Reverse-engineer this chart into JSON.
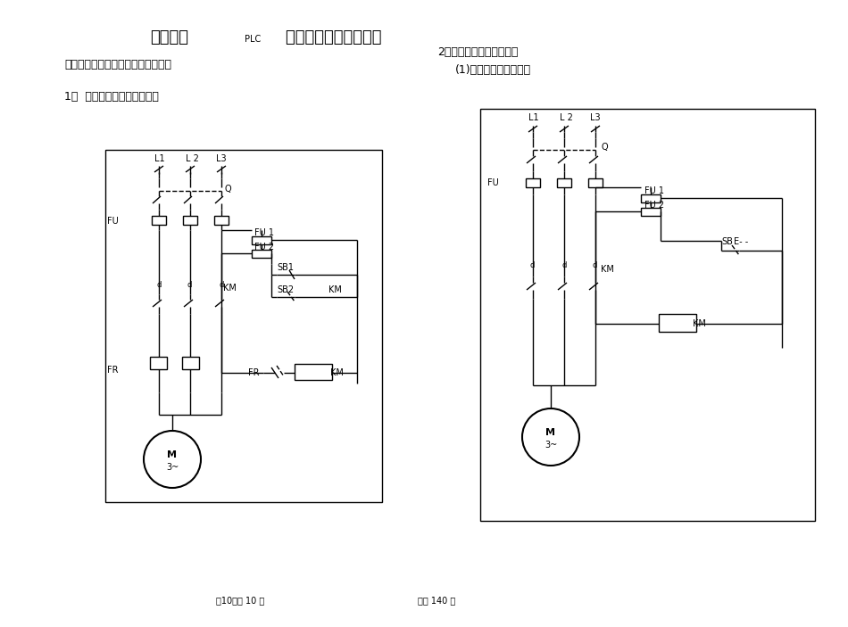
{
  "title_part1": "《电器及",
  "title_plc": "PLC",
  "title_part2": "    把握技术》电气原理图",
  "subtitle_left": "、三相异步电机的全压起动把握电路",
  "subtitle_right": "2、电动机的点动把握电路",
  "subtitle_right2": "(1)仅能点动把握的电路",
  "label1": "1、  电动机连续运转把握电路",
  "footer_left": "第10页共 10 页",
  "footer_right": "共印 140 份",
  "bg_color": "#ffffff",
  "lc": "#000000"
}
